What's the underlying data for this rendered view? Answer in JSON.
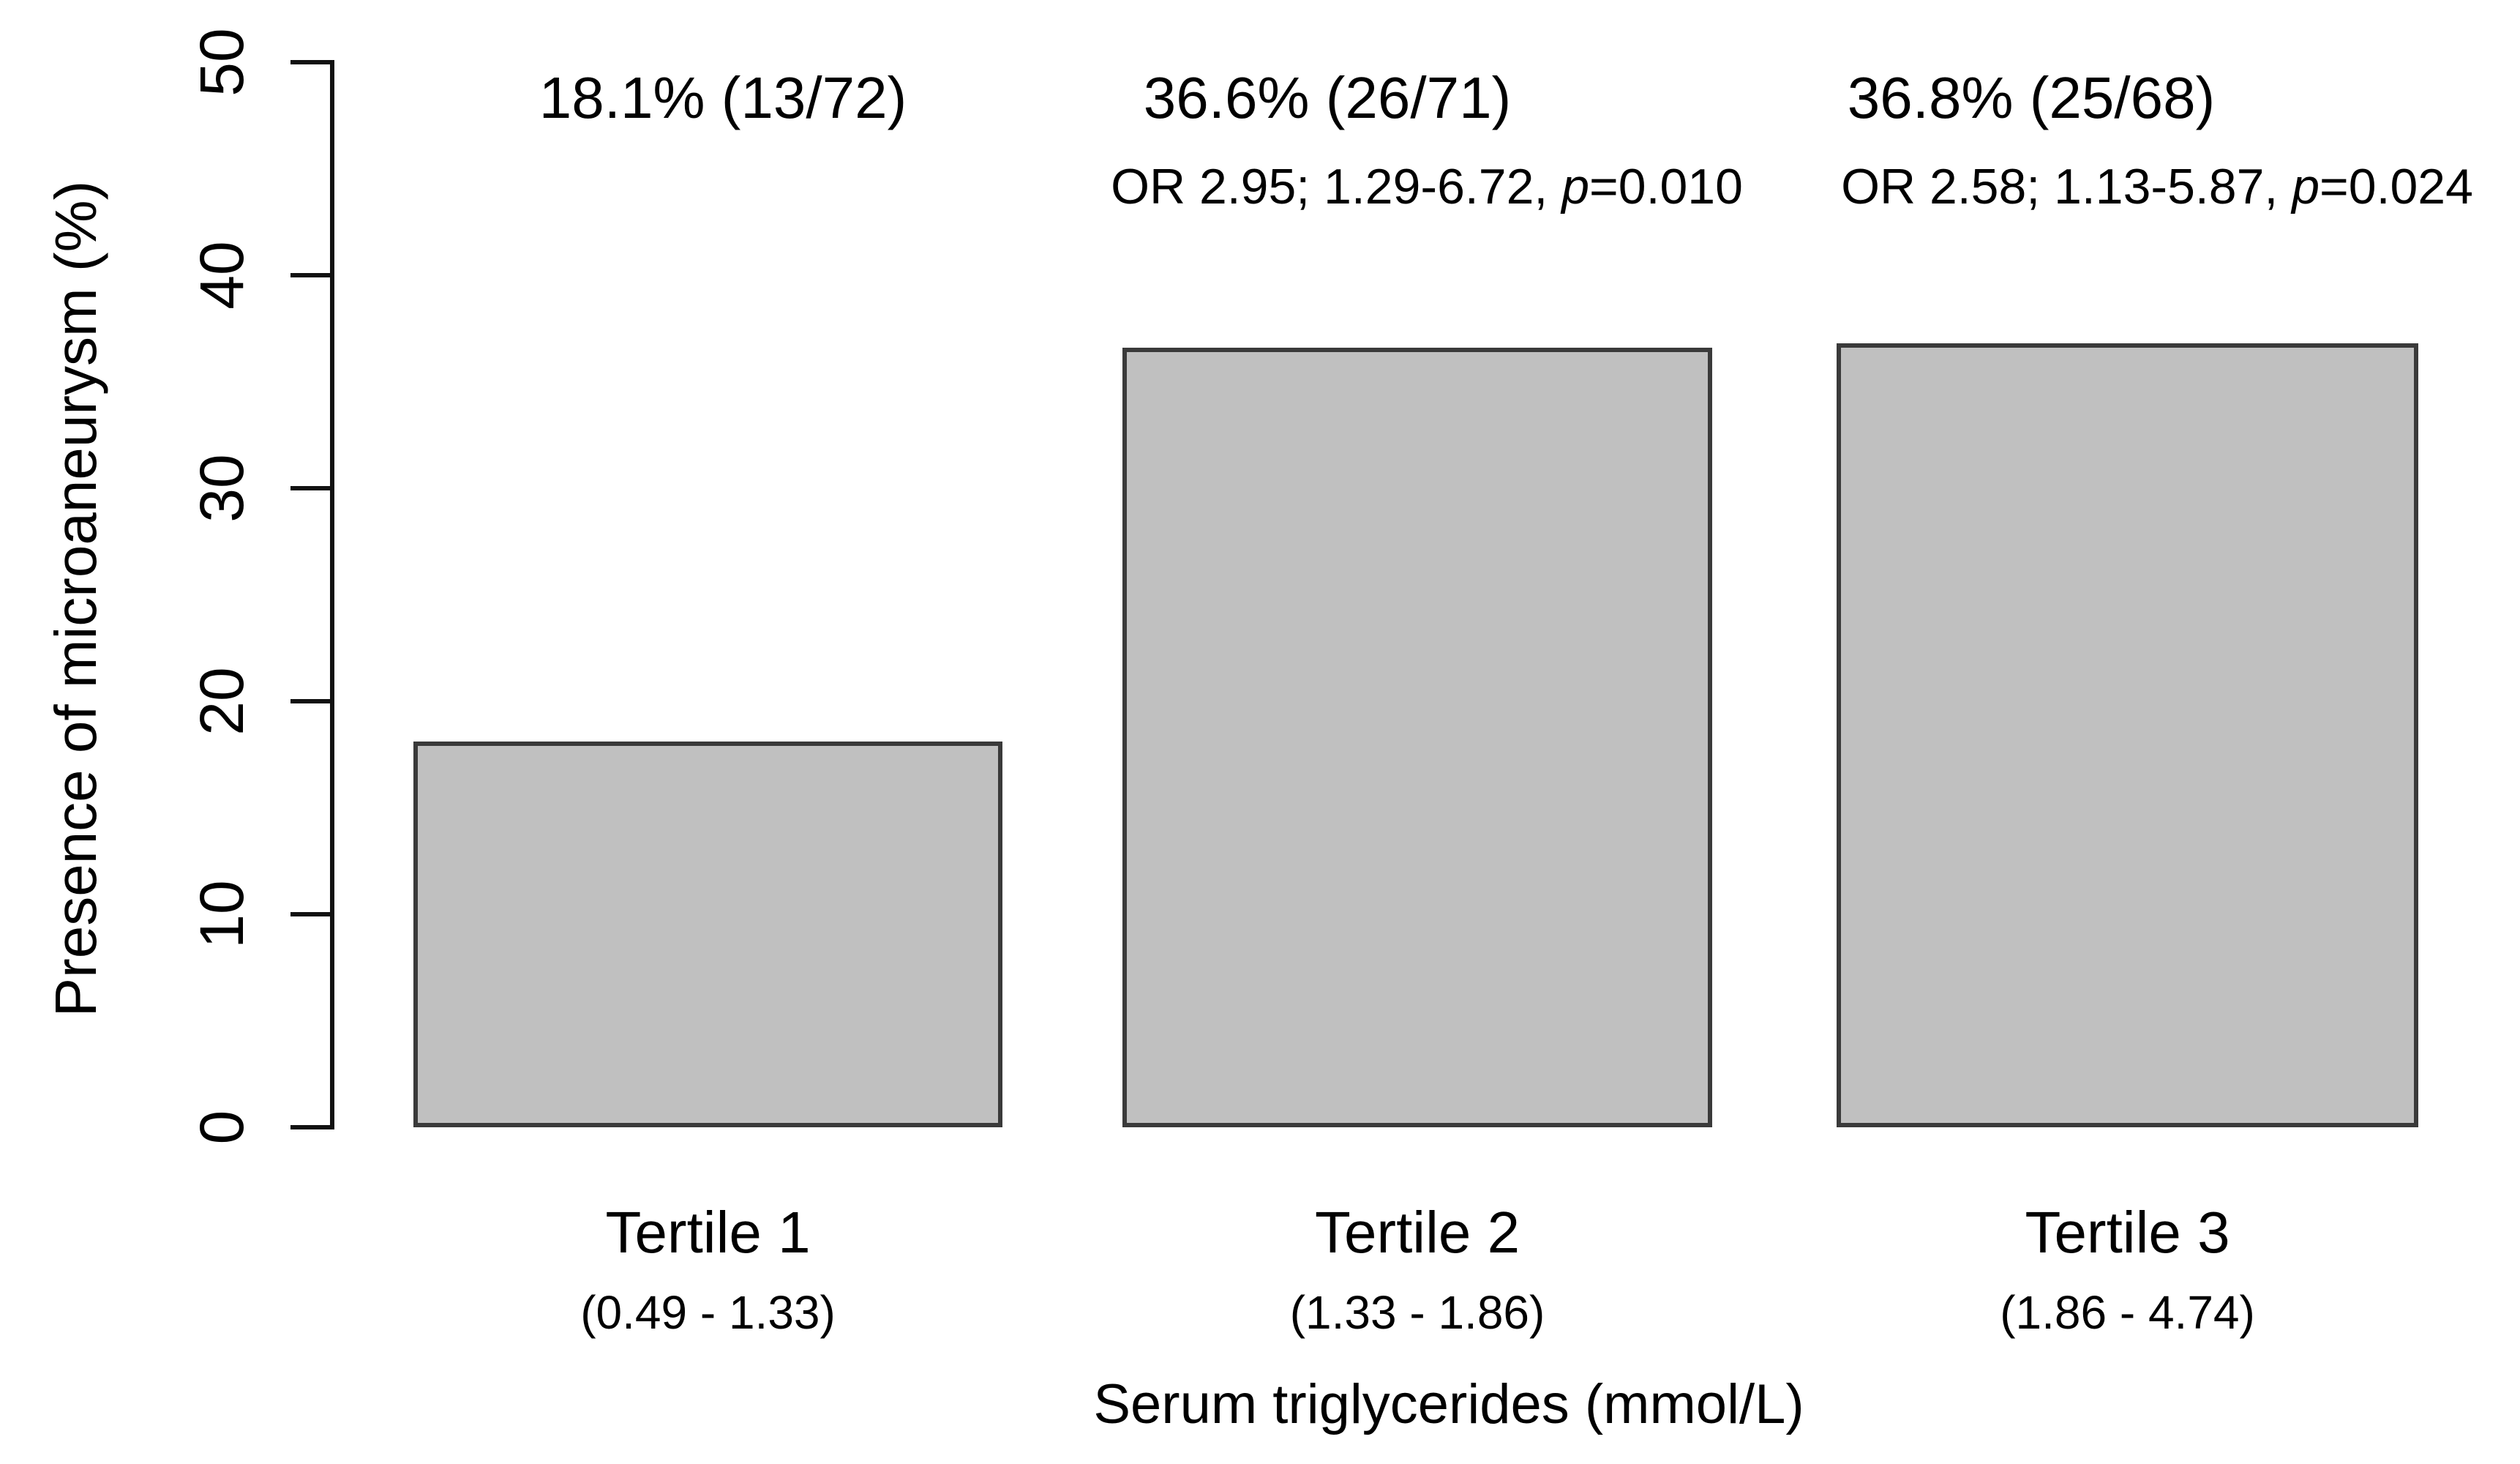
{
  "chart_data": {
    "type": "bar",
    "title": "",
    "ylabel": "Presence of microaneurysm (%)",
    "xlabel": "Serum triglycerides (mmol/L)",
    "ylim": [
      0,
      50
    ],
    "yticks": [
      0,
      10,
      20,
      30,
      40,
      50
    ],
    "grid": false,
    "legend": false,
    "categories": [
      "Tertile 1",
      "Tertile 2",
      "Tertile 3"
    ],
    "category_ranges": [
      "(0.49 - 1.33)",
      "(1.33 - 1.86)",
      "(1.86 - 4.74)"
    ],
    "values": [
      18.1,
      36.6,
      36.8
    ],
    "bar_annotations": [
      "18.1% (13/72)",
      "36.6% (26/71)",
      "36.8% (25/68)"
    ],
    "or_annotations": [
      null,
      {
        "prefix": "OR 2.95; 1.29-6.72, ",
        "p_label": "p",
        "suffix": "=0.010"
      },
      {
        "prefix": "OR 2.58; 1.13-5.87, ",
        "p_label": "p",
        "suffix": "=0.024"
      }
    ],
    "colors": {
      "bar_fill": "#c0c0c0",
      "bar_border": "#3a3a3a",
      "axis": "#111111",
      "text": "#000000",
      "background": "#ffffff"
    }
  }
}
